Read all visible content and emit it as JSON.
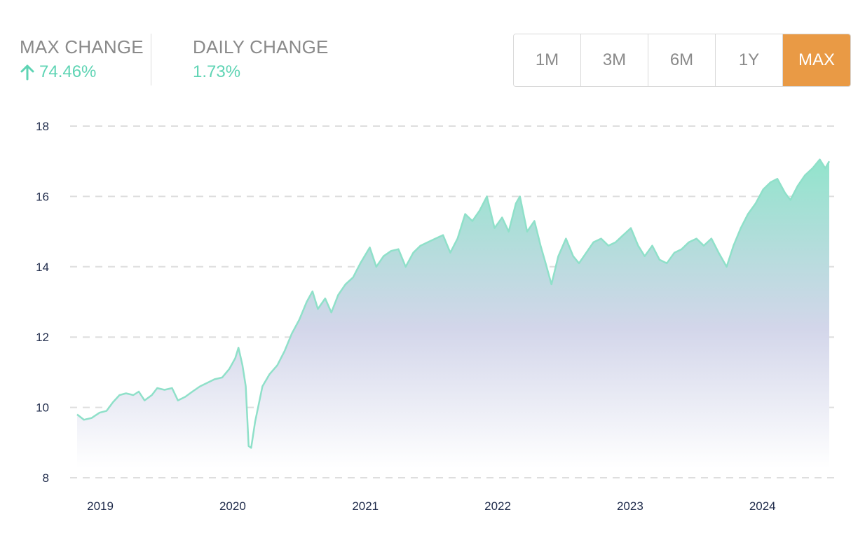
{
  "stats": {
    "max_change": {
      "label": "MAX CHANGE",
      "value": "74.46%",
      "direction": "up"
    },
    "daily_change": {
      "label": "DAILY CHANGE",
      "value": "1.73%"
    }
  },
  "range_buttons": [
    {
      "label": "1M",
      "active": false
    },
    {
      "label": "3M",
      "active": false
    },
    {
      "label": "6M",
      "active": false
    },
    {
      "label": "1Y",
      "active": false
    },
    {
      "label": "MAX",
      "active": true
    }
  ],
  "colors": {
    "positive": "#5fd4b4",
    "active_button": "#e99a45",
    "line": "#8fe0c9",
    "area_top": "#92e4cc",
    "area_mid": "#d3d6ea",
    "area_bottom": "#ffffff",
    "grid": "#dedede",
    "axis_text": "#1e2a4a"
  },
  "icons": {
    "max_change_direction": "arrow-up-icon"
  },
  "chart_data": {
    "type": "area",
    "title": "",
    "xlabel": "",
    "ylabel": "",
    "ylim": [
      8,
      18
    ],
    "xlim": [
      "2018-12-01",
      "2024-08-05"
    ],
    "y_ticks": [
      "8",
      "10",
      "12",
      "14",
      "16",
      "18"
    ],
    "x_ticks": [
      {
        "label": "2019",
        "date": "2019-01-01"
      },
      {
        "label": "2020",
        "date": "2020-01-01"
      },
      {
        "label": "2021",
        "date": "2021-01-01"
      },
      {
        "label": "2022",
        "date": "2022-01-01"
      },
      {
        "label": "2023",
        "date": "2023-01-01"
      },
      {
        "label": "2024",
        "date": "2024-01-01"
      }
    ],
    "grid": true,
    "legend": "none",
    "series": [
      {
        "points": [
          [
            "2018-12-01",
            9.8
          ],
          [
            "2018-12-20",
            9.65
          ],
          [
            "2019-01-10",
            9.7
          ],
          [
            "2019-02-01",
            9.85
          ],
          [
            "2019-02-20",
            9.9
          ],
          [
            "2019-03-10",
            10.15
          ],
          [
            "2019-03-28",
            10.35
          ],
          [
            "2019-04-15",
            10.4
          ],
          [
            "2019-05-05",
            10.35
          ],
          [
            "2019-05-20",
            10.45
          ],
          [
            "2019-06-05",
            10.2
          ],
          [
            "2019-06-25",
            10.35
          ],
          [
            "2019-07-10",
            10.55
          ],
          [
            "2019-07-30",
            10.5
          ],
          [
            "2019-08-20",
            10.55
          ],
          [
            "2019-09-05",
            10.2
          ],
          [
            "2019-09-25",
            10.3
          ],
          [
            "2019-10-15",
            10.45
          ],
          [
            "2019-11-05",
            10.6
          ],
          [
            "2019-11-25",
            10.7
          ],
          [
            "2019-12-15",
            10.8
          ],
          [
            "2020-01-05",
            10.85
          ],
          [
            "2020-01-25",
            11.1
          ],
          [
            "2020-02-10",
            11.4
          ],
          [
            "2020-02-19",
            11.7
          ],
          [
            "2020-03-01",
            11.2
          ],
          [
            "2020-03-10",
            10.6
          ],
          [
            "2020-03-18",
            8.9
          ],
          [
            "2020-03-25",
            8.85
          ],
          [
            "2020-04-05",
            9.6
          ],
          [
            "2020-04-25",
            10.6
          ],
          [
            "2020-05-15",
            10.95
          ],
          [
            "2020-06-05",
            11.2
          ],
          [
            "2020-06-25",
            11.6
          ],
          [
            "2020-07-15",
            12.1
          ],
          [
            "2020-08-05",
            12.5
          ],
          [
            "2020-08-25",
            13.0
          ],
          [
            "2020-09-10",
            13.3
          ],
          [
            "2020-09-25",
            12.8
          ],
          [
            "2020-10-15",
            13.1
          ],
          [
            "2020-11-01",
            12.7
          ],
          [
            "2020-11-20",
            13.2
          ],
          [
            "2020-12-10",
            13.5
          ],
          [
            "2020-12-31",
            13.7
          ],
          [
            "2021-01-20",
            14.1
          ],
          [
            "2021-02-15",
            14.55
          ],
          [
            "2021-03-05",
            14.0
          ],
          [
            "2021-03-25",
            14.3
          ],
          [
            "2021-04-15",
            14.45
          ],
          [
            "2021-05-05",
            14.5
          ],
          [
            "2021-05-25",
            14.0
          ],
          [
            "2021-06-15",
            14.4
          ],
          [
            "2021-07-05",
            14.6
          ],
          [
            "2021-07-25",
            14.7
          ],
          [
            "2021-08-15",
            14.8
          ],
          [
            "2021-09-05",
            14.9
          ],
          [
            "2021-09-25",
            14.4
          ],
          [
            "2021-10-15",
            14.8
          ],
          [
            "2021-11-05",
            15.5
          ],
          [
            "2021-11-25",
            15.3
          ],
          [
            "2021-12-15",
            15.6
          ],
          [
            "2022-01-04",
            16.0
          ],
          [
            "2022-01-25",
            15.1
          ],
          [
            "2022-02-15",
            15.4
          ],
          [
            "2022-03-05",
            15.0
          ],
          [
            "2022-03-25",
            15.8
          ],
          [
            "2022-04-05",
            16.0
          ],
          [
            "2022-04-25",
            15.0
          ],
          [
            "2022-05-15",
            15.3
          ],
          [
            "2022-06-01",
            14.6
          ],
          [
            "2022-06-15",
            14.1
          ],
          [
            "2022-07-01",
            13.5
          ],
          [
            "2022-07-20",
            14.3
          ],
          [
            "2022-08-10",
            14.8
          ],
          [
            "2022-08-30",
            14.3
          ],
          [
            "2022-09-15",
            14.1
          ],
          [
            "2022-10-05",
            14.4
          ],
          [
            "2022-10-25",
            14.7
          ],
          [
            "2022-11-15",
            14.8
          ],
          [
            "2022-12-05",
            14.6
          ],
          [
            "2022-12-25",
            14.7
          ],
          [
            "2023-01-15",
            14.9
          ],
          [
            "2023-02-05",
            15.1
          ],
          [
            "2023-02-25",
            14.6
          ],
          [
            "2023-03-15",
            14.3
          ],
          [
            "2023-04-05",
            14.6
          ],
          [
            "2023-04-25",
            14.2
          ],
          [
            "2023-05-15",
            14.1
          ],
          [
            "2023-06-05",
            14.4
          ],
          [
            "2023-06-25",
            14.5
          ],
          [
            "2023-07-15",
            14.7
          ],
          [
            "2023-08-05",
            14.8
          ],
          [
            "2023-08-25",
            14.6
          ],
          [
            "2023-09-15",
            14.8
          ],
          [
            "2023-10-05",
            14.4
          ],
          [
            "2023-10-27",
            14.0
          ],
          [
            "2023-11-15",
            14.6
          ],
          [
            "2023-12-05",
            15.1
          ],
          [
            "2023-12-25",
            15.5
          ],
          [
            "2024-01-15",
            15.8
          ],
          [
            "2024-02-05",
            16.2
          ],
          [
            "2024-02-25",
            16.4
          ],
          [
            "2024-03-15",
            16.5
          ],
          [
            "2024-04-05",
            16.1
          ],
          [
            "2024-04-20",
            15.9
          ],
          [
            "2024-05-10",
            16.3
          ],
          [
            "2024-05-30",
            16.6
          ],
          [
            "2024-06-20",
            16.8
          ],
          [
            "2024-07-10",
            17.05
          ],
          [
            "2024-07-25",
            16.8
          ],
          [
            "2024-08-05",
            17.0
          ]
        ]
      }
    ]
  }
}
